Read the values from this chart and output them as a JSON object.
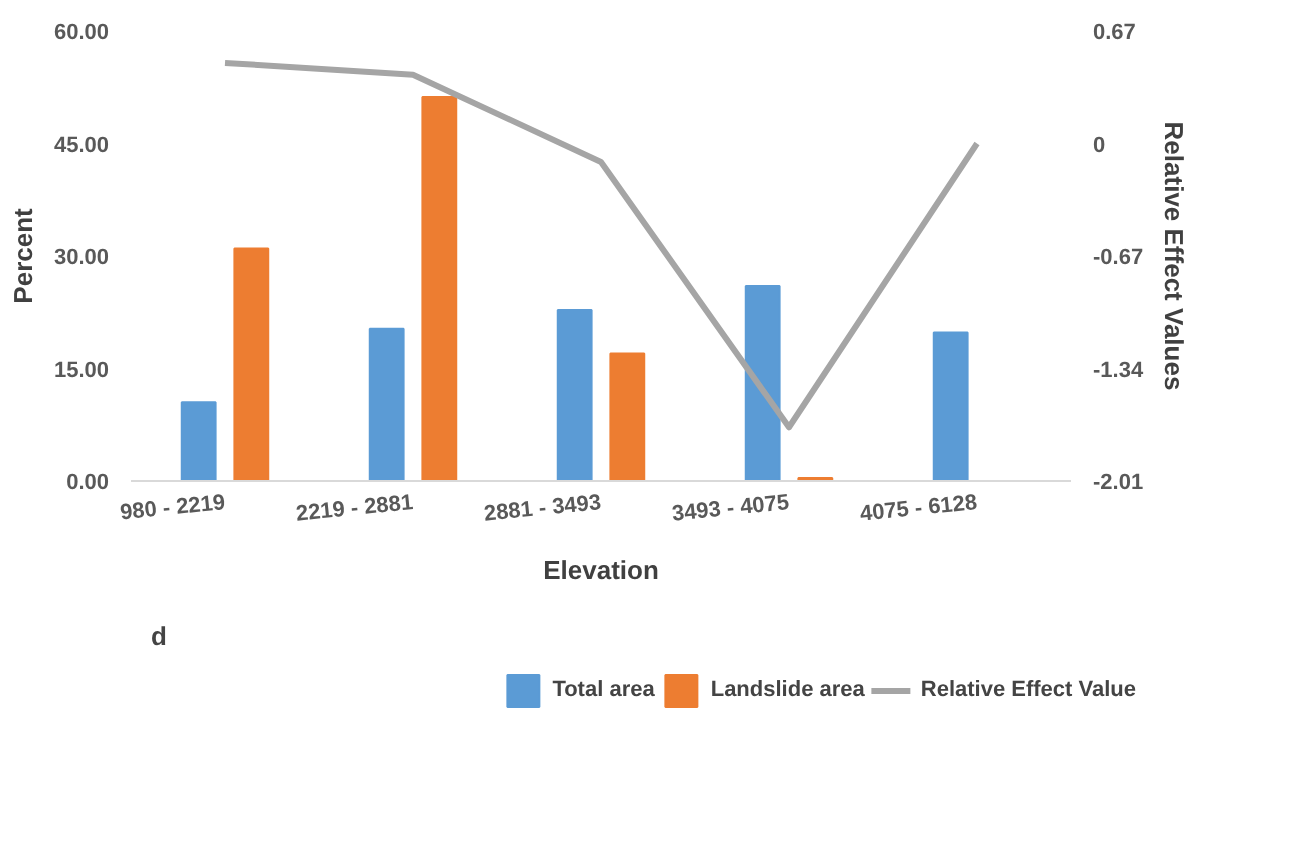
{
  "chart_data": {
    "type": "bar",
    "xlabel": "Elevation",
    "ylabel": "Percent",
    "y2label": "Relative Effect Values",
    "categories": [
      "980 - 2219",
      "2219 - 2881",
      "2881 - 3493",
      "3493 - 4075",
      "4075 - 6128"
    ],
    "series": [
      {
        "name": "Total area",
        "color": "#5b9bd5",
        "values": [
          10.5,
          20.3,
          22.8,
          26.0,
          19.8
        ]
      },
      {
        "name": "Landslide area",
        "color": "#ed7d31",
        "values": [
          31.0,
          51.2,
          17.0,
          0.4,
          0
        ]
      },
      {
        "name": "Relative Effect Value",
        "type": "line",
        "axis": "y2",
        "color": "#a5a5a5",
        "values": [
          0.48,
          0.41,
          -0.11,
          -1.69,
          0.0
        ]
      }
    ],
    "ylim": [
      0,
      60
    ],
    "yticks": [
      {
        "value": 0,
        "label": "0.00"
      },
      {
        "value": 15,
        "label": "15.00"
      },
      {
        "value": 30,
        "label": "30.00"
      },
      {
        "value": 45,
        "label": "45.00"
      },
      {
        "value": 60,
        "label": "60.00"
      }
    ],
    "y2lim": [
      -2.01,
      0.67
    ],
    "y2ticks": [
      -2.01,
      -1.34,
      -0.67,
      0,
      0.67
    ],
    "annotations": [
      "d"
    ],
    "legend": "bottom",
    "grid": false
  }
}
